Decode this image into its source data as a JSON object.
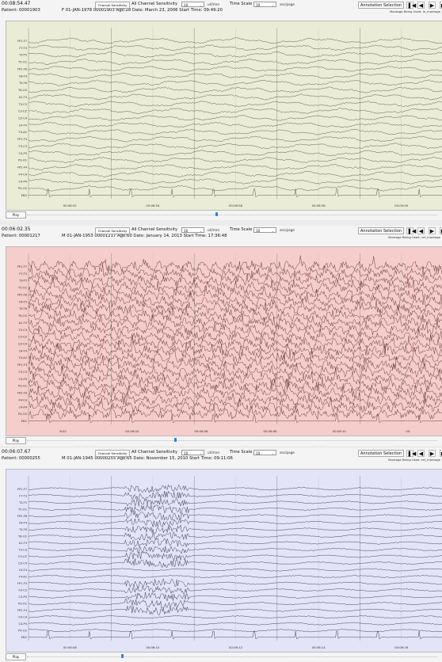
{
  "common": {
    "channel_sensitivity_button": "Channel Sensitivity",
    "all_channel_sensitivity_label": "All Channel Sensitivity",
    "sensitivity_unit": "uV/mm",
    "time_scale_label": "Time Scale",
    "time_scale_unit": "sec/page",
    "annotation_selection": "Annotation Selection",
    "play_label": "Play",
    "icons": [
      "skip-to-start-icon",
      "step-back-icon",
      "play-forward-icon",
      "skip-forward-icon"
    ]
  },
  "panels": [
    {
      "time": "00:08:54.47",
      "patient": "Patient: 00001903",
      "info": "F 01-JAN-1978 00001903 Age:28  Date: March 23, 2006   Start Time: 09:49:20",
      "sensitivity": "10",
      "time_scale": "10",
      "montage": "Montage Being Used: le_montage",
      "background": "#ebecd5",
      "trace_color": "#555555",
      "trace_style": "normal",
      "channels": [
        "FP1-F7",
        "F7-T3",
        "T3-T5",
        "T5-O1",
        "FP2-F8",
        "F8-T4",
        "T4-T6",
        "T6-O2",
        "A1-T3",
        "T3-C3",
        "C3-CZ",
        "CZ-C4",
        "C4-T4",
        "T4-A2",
        "FP1-F3",
        "F3-C3",
        "C3-P3",
        "P3-O1",
        "FP2-F4",
        "F4-C4",
        "C4-P4",
        "P4-O2",
        "EKG"
      ],
      "time_ticks": [
        "00:08:52",
        "00:08:54",
        "00:08:56",
        "00:08:58",
        "00:09:00"
      ],
      "slider_position": 0.46
    },
    {
      "time": "00:06:02.35",
      "patient": "Patient: 00001217",
      "info": "M 01-JAN-1953 00001217 Age:60  Date: January 14, 2013   Start Time: 17:36:48",
      "sensitivity": "10",
      "time_scale": "10",
      "montage": "Montage Being Used: ref_montage",
      "background": "#f5cdca",
      "trace_color": "#5a3030",
      "trace_style": "spiky",
      "channels": [
        "FP1-F7",
        "F7-T3",
        "T3-T5",
        "T5-O1",
        "FP2-F8",
        "F8-T4",
        "T4-T6",
        "T6-O2",
        "A1-T3",
        "T3-C3",
        "C3-CZ",
        "CZ-C4",
        "C4-T4",
        "T4-A2",
        "FP1-F3",
        "F3-C3",
        "C3-P3",
        "P3-O1",
        "FP2-F4",
        "F4-C4",
        "C4-P4",
        "P4-O2",
        "EKG"
      ],
      "time_ticks": [
        "6:02",
        "00:06:04",
        "00:06:06",
        "00:06:08",
        "00:06:10",
        "00:"
      ],
      "slider_position": 0.36
    },
    {
      "time": "00:06:07.67",
      "patient": "Patient: 00000255",
      "info": "M 01-JAN-1945 00000255 Age:65  Date: November 15, 2010   Start Time: 09:11:06",
      "sensitivity": "10",
      "time_scale": "10",
      "montage": "Montage Being Used: ref_montage",
      "background": "#e3e4f7",
      "trace_color": "#3e3e55",
      "trace_style": "burst",
      "channels": [
        "FP1-F7",
        "F7-T3",
        "T3-T5",
        "T5-O1",
        "FP2-F8",
        "F8-T4",
        "T4-T6",
        "T6-O2",
        "A1-T3",
        "T3-C3",
        "C3-CZ",
        "CZ-C4",
        "C4-T4",
        "T4-A2",
        "FP1-F3",
        "F3-C3",
        "C3-P3",
        "P3-O1",
        "FP2-F4",
        "F4-C4",
        "C4-P4",
        "P4-O2",
        "EKG"
      ],
      "time_ticks": [
        "00:06:08",
        "00:06:10",
        "00:06:12",
        "00:06:14",
        "00:06:16"
      ],
      "slider_position": 0.23
    }
  ]
}
